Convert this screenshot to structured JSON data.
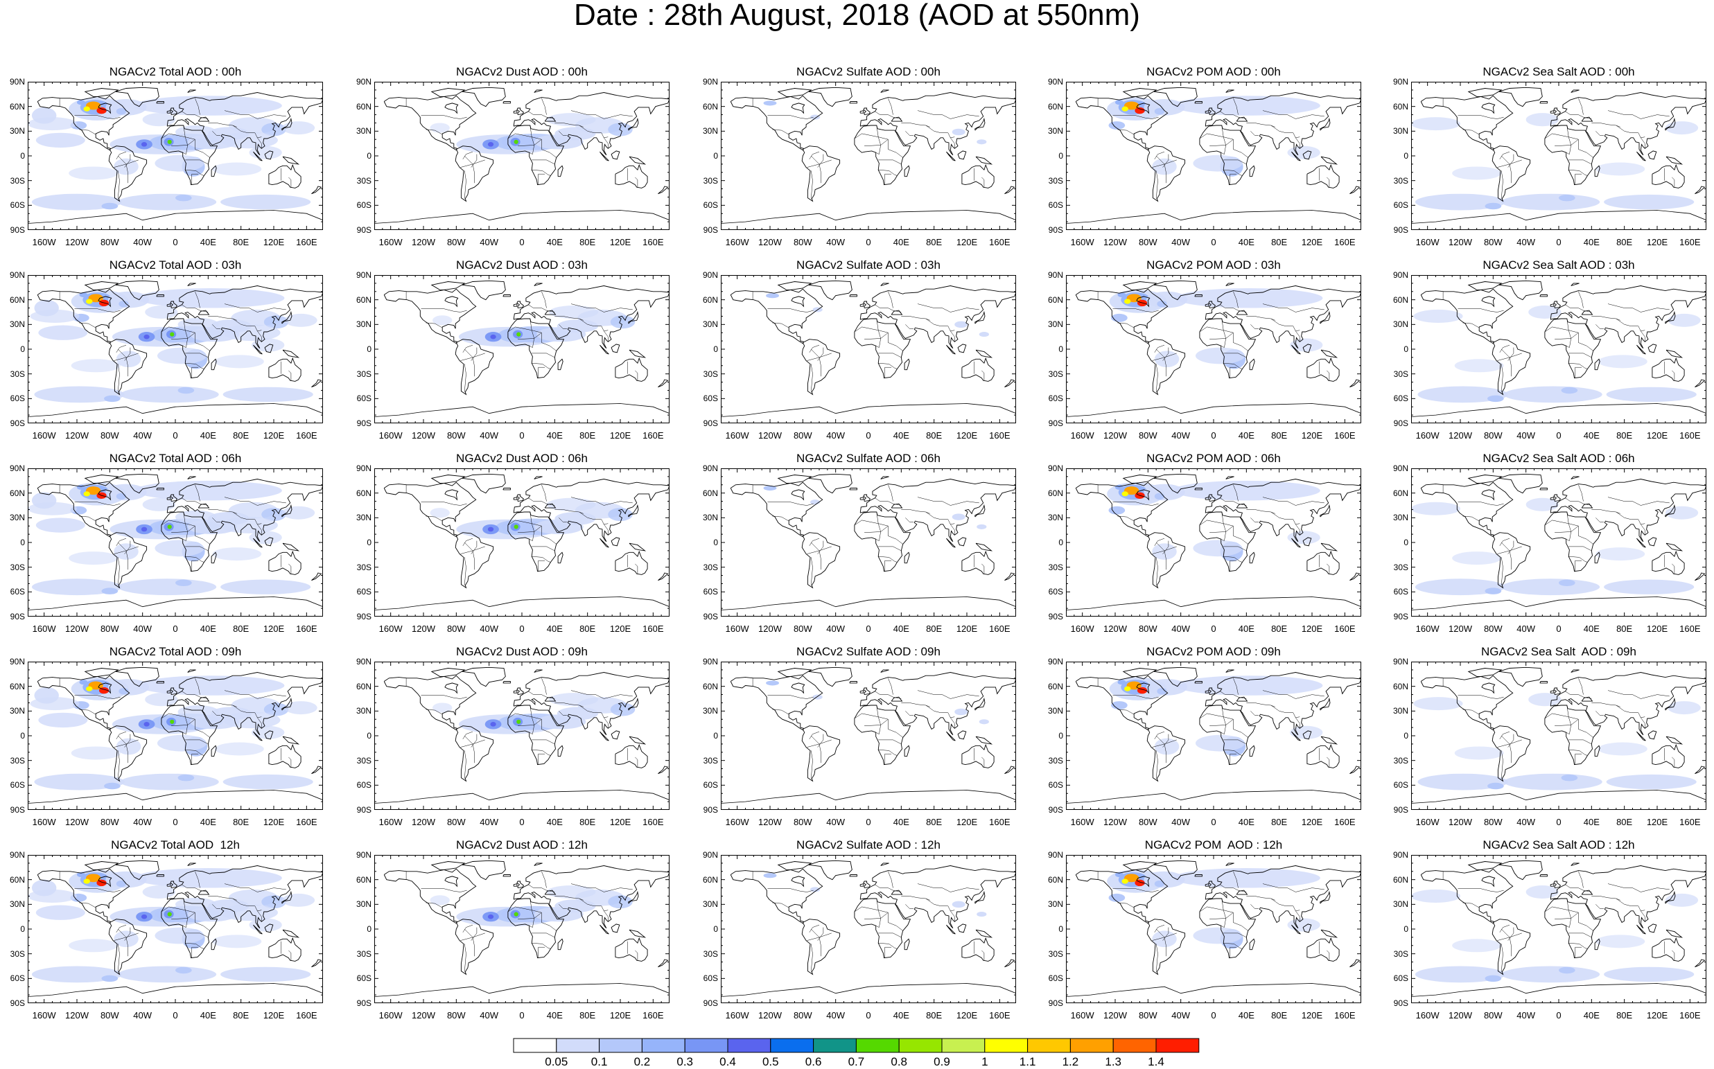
{
  "title": "Date : 28th August, 2018 (AOD at 550nm)",
  "columns": [
    "total",
    "dust",
    "sulfate",
    "pom",
    "seasalt"
  ],
  "rows": [
    "00h",
    "03h",
    "06h",
    "09h",
    "12h"
  ],
  "panels": [
    [
      "NGACv2 Total AOD : 00h",
      "NGACv2 Dust AOD : 00h",
      "NGACv2 Sulfate AOD : 00h",
      "NGACv2 POM AOD : 00h",
      "NGACv2 Sea Salt AOD : 00h"
    ],
    [
      "NGACv2 Total AOD : 03h",
      "NGACv2 Dust AOD : 03h",
      "NGACv2 Sulfate AOD : 03h",
      "NGACv2 POM AOD : 03h",
      "NGACv2 Sea Salt AOD : 03h"
    ],
    [
      "NGACv2 Total AOD : 06h",
      "NGACv2 Dust AOD : 06h",
      "NGACv2 Sulfate AOD : 06h",
      "NGACv2 POM AOD : 06h",
      "NGACv2 Sea Salt AOD : 06h"
    ],
    [
      "NGACv2 Total AOD : 09h",
      "NGACv2 Dust AOD : 09h",
      "NGACv2 Sulfate AOD : 09h",
      "NGACv2 POM AOD : 09h",
      "NGACv2 Sea Salt  AOD : 09h"
    ],
    [
      "NGACv2 Total AOD  12h",
      "NGACv2 Dust AOD : 12h",
      "NGACv2 Sulfate AOD : 12h",
      "NGACv2 POM  AOD : 12h",
      "NGACv2 Sea Salt AOD : 12h"
    ]
  ],
  "lat_ticks": [
    "90N",
    "60N",
    "30N",
    "0",
    "30S",
    "60S",
    "90S"
  ],
  "lon_ticks": [
    "160W",
    "120W",
    "80W",
    "40W",
    "0",
    "40E",
    "80E",
    "120E",
    "160E"
  ],
  "colorbar": {
    "labels": [
      "0.05",
      "0.1",
      "0.2",
      "0.3",
      "0.4",
      "0.5",
      "0.6",
      "0.7",
      "0.8",
      "0.9",
      "1",
      "1.1",
      "1.2",
      "1.3",
      "1.4"
    ],
    "colors": [
      "#ffffff",
      "#d2dcfa",
      "#b4c8fa",
      "#96b4fa",
      "#7896f5",
      "#5a64ee",
      "#0a6eee",
      "#119488",
      "#55d900",
      "#96e600",
      "#c8f050",
      "#ffff00",
      "#ffc800",
      "#ffa000",
      "#ff6400",
      "#ff1e00"
    ]
  },
  "style": {
    "coast": "#000000",
    "aerosol_colors": [
      "#d2dcfa",
      "#b4c8fa",
      "#96b4fa",
      "#7896f5",
      "#5a64ee",
      "#55d900",
      "#ffff00",
      "#ffa000",
      "#ff1e00"
    ]
  }
}
